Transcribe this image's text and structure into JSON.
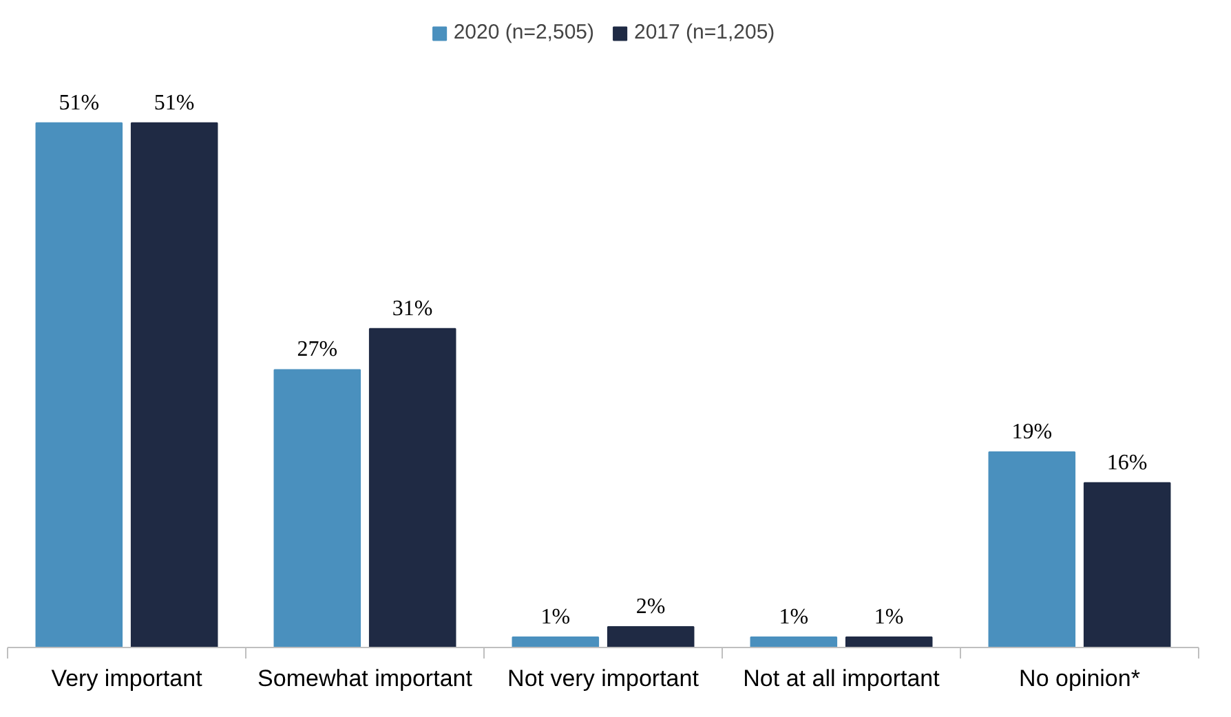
{
  "chart_data": {
    "type": "bar",
    "categories": [
      "Very important",
      "Somewhat important",
      "Not very important",
      "Not at all important",
      "No opinion*"
    ],
    "series": [
      {
        "name": "2020 (n=2,505)",
        "color": "#4a90be",
        "values": [
          51,
          27,
          1,
          1,
          19
        ],
        "value_labels": [
          "51%",
          "27%",
          "1%",
          "1%",
          "19%"
        ]
      },
      {
        "name": "2017 (n=1,205)",
        "color": "#1f2a44",
        "values": [
          51,
          31,
          2,
          1,
          16
        ],
        "value_labels": [
          "51%",
          "31%",
          "2%",
          "1%",
          "16%"
        ]
      }
    ],
    "legend": "top"
  }
}
